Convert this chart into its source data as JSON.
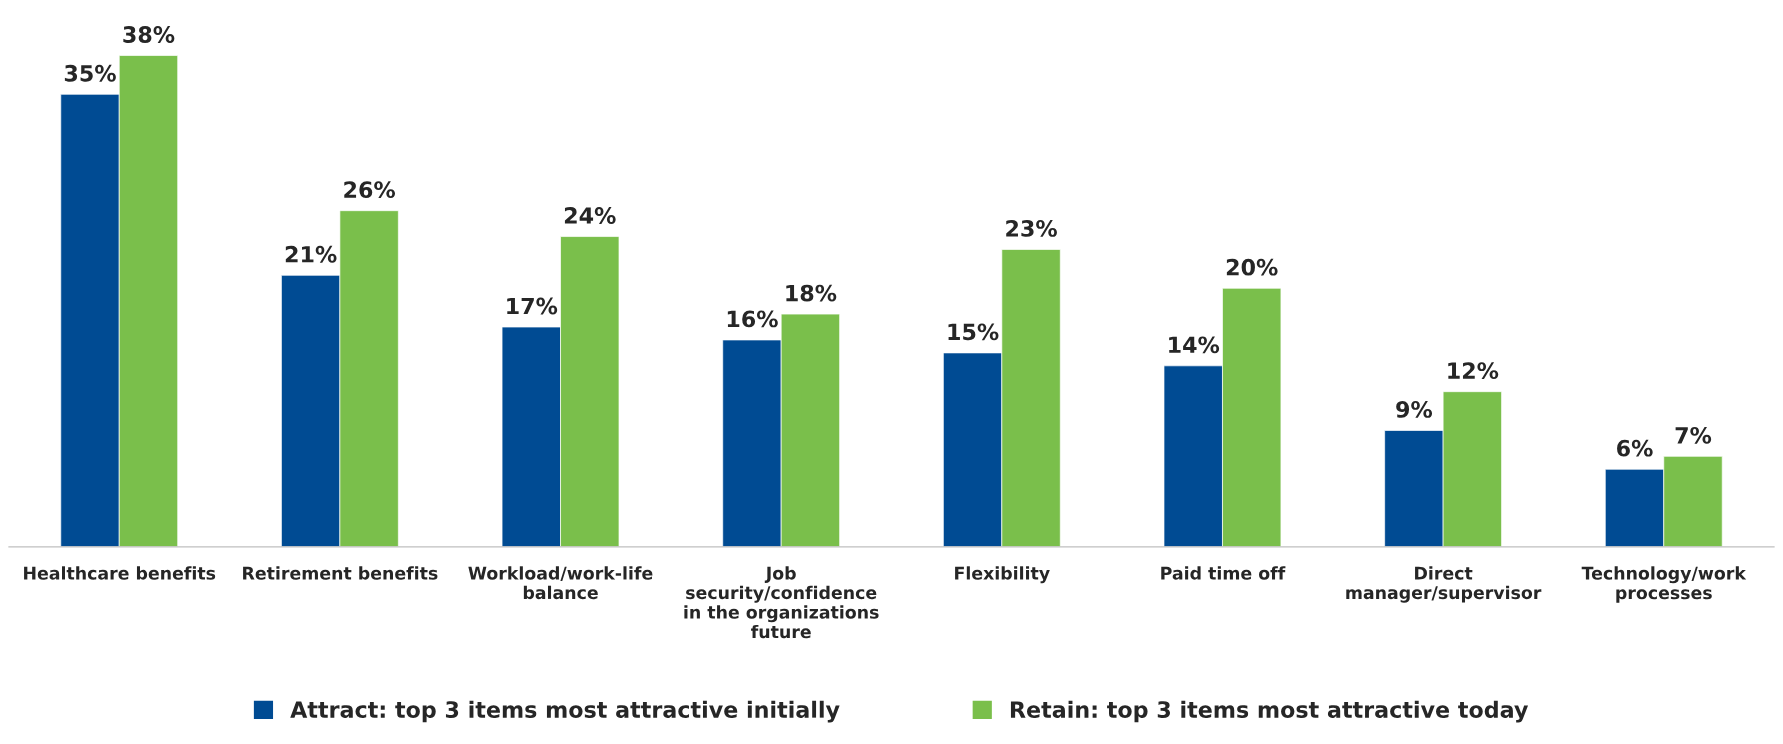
{
  "chart_data": {
    "type": "bar",
    "categories": [
      "Healthcare benefits",
      "Retirement benefits",
      "Workload/work-life\nbalance",
      "Job\nsecurity/confidence\nin the organizations\nfuture",
      "Flexibility",
      "Paid time off",
      "Direct\nmanager/supervisor",
      "Technology/work\nprocesses"
    ],
    "series": [
      {
        "name": "Attract: top 3 items most attractive initially",
        "color": "#004b93",
        "values": [
          35,
          21,
          17,
          16,
          15,
          14,
          9,
          6
        ],
        "value_labels": [
          "35%",
          "21%",
          "17%",
          "16%",
          "15%",
          "14%",
          "9%",
          "6%"
        ]
      },
      {
        "name": "Retain: top 3 items most attractive today",
        "color": "#7abf4b",
        "values": [
          38,
          26,
          24,
          18,
          23,
          20,
          12,
          7
        ],
        "value_labels": [
          "38%",
          "26%",
          "24%",
          "18%",
          "23%",
          "20%",
          "12%",
          "7%"
        ]
      }
    ],
    "legend": "bottom"
  }
}
